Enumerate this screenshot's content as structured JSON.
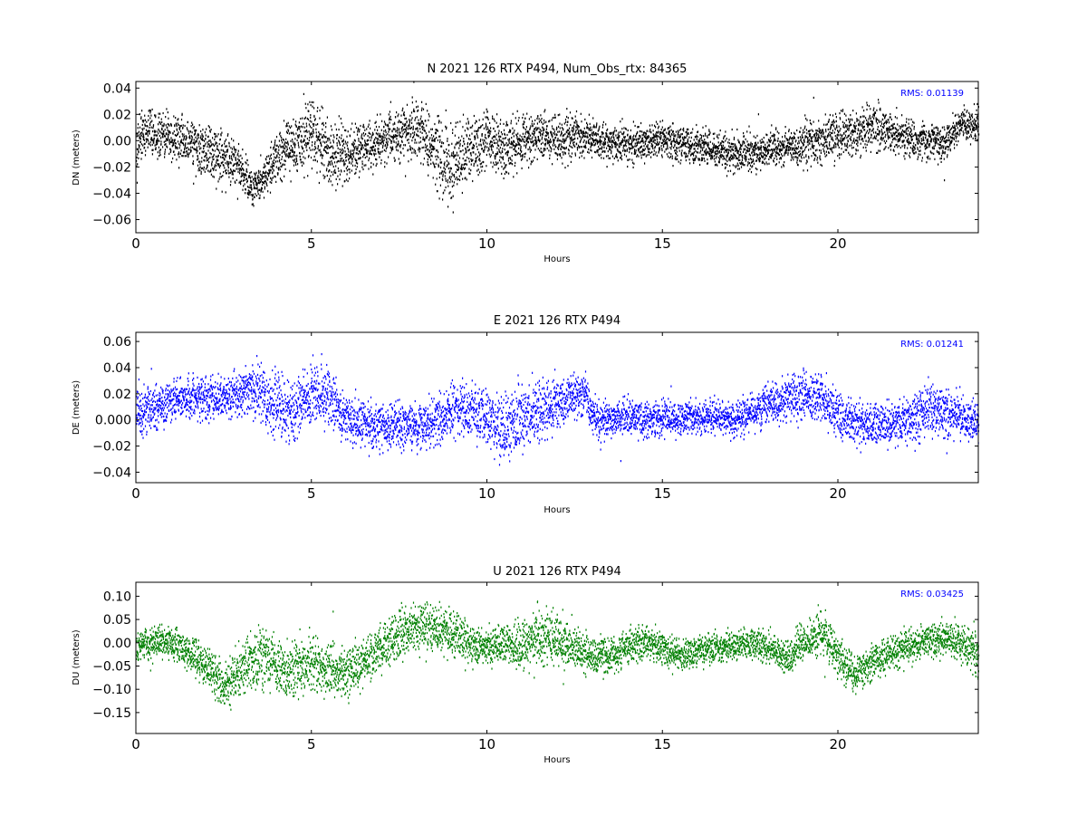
{
  "chart_data": [
    {
      "type": "scatter",
      "title": "N 2021 126 RTX  P494, Num_Obs_rtx: 84365",
      "xlabel": "Hours",
      "ylabel": "DN (meters)",
      "xlim": [
        0,
        24
      ],
      "ylim": [
        -0.07,
        0.045
      ],
      "xticks": [
        0,
        5,
        10,
        15,
        20
      ],
      "xtick_labels": [
        "0",
        "5",
        "10",
        "15",
        "20"
      ],
      "yticks": [
        -0.06,
        -0.04,
        -0.02,
        0.0,
        0.02,
        0.04
      ],
      "ytick_labels": [
        "−0.06",
        "−0.04",
        "−0.02",
        "0.00",
        "0.02",
        "0.04"
      ],
      "annotation": "RMS:  0.01139",
      "annotation_color": "#0000ff",
      "color": "#000000",
      "grid": false,
      "series": [
        {
          "x": [
            0,
            0.5,
            1,
            1.5,
            2,
            2.5,
            3,
            3.3,
            3.6,
            4,
            4.5,
            5,
            5.5,
            6,
            6.5,
            7,
            7.5,
            8,
            8.5,
            9,
            9.5,
            10,
            10.5,
            11,
            11.5,
            12,
            12.5,
            13,
            13.5,
            14,
            14.5,
            15,
            15.5,
            16,
            16.5,
            17,
            17.5,
            18,
            18.5,
            19,
            19.5,
            20,
            20.5,
            21,
            21.5,
            22,
            22.5,
            23,
            23.5,
            24
          ],
          "y": [
            0.0,
            0.005,
            0.002,
            -0.002,
            -0.008,
            -0.012,
            -0.022,
            -0.035,
            -0.03,
            -0.012,
            -0.002,
            0.005,
            -0.01,
            -0.012,
            -0.006,
            0.0,
            0.005,
            0.012,
            -0.01,
            -0.02,
            -0.005,
            0.0,
            -0.008,
            0.002,
            0.003,
            0.0,
            0.003,
            0.002,
            -0.002,
            -0.003,
            -0.002,
            0.002,
            -0.002,
            -0.004,
            -0.008,
            -0.01,
            -0.008,
            -0.006,
            -0.004,
            -0.002,
            0.0,
            0.004,
            0.006,
            0.01,
            0.006,
            0.002,
            0.0,
            -0.002,
            0.012,
            0.012
          ],
          "spread": [
            0.012,
            0.012,
            0.012,
            0.013,
            0.014,
            0.014,
            0.012,
            0.01,
            0.01,
            0.013,
            0.015,
            0.017,
            0.017,
            0.015,
            0.013,
            0.012,
            0.013,
            0.016,
            0.02,
            0.022,
            0.018,
            0.015,
            0.014,
            0.013,
            0.012,
            0.012,
            0.012,
            0.011,
            0.01,
            0.01,
            0.009,
            0.009,
            0.009,
            0.009,
            0.01,
            0.011,
            0.011,
            0.01,
            0.01,
            0.011,
            0.012,
            0.012,
            0.012,
            0.012,
            0.011,
            0.01,
            0.009,
            0.009,
            0.009,
            0.01
          ]
        }
      ]
    },
    {
      "type": "scatter",
      "title": "E 2021 126 RTX  P494",
      "xlabel": "Hours",
      "ylabel": "DE (meters)",
      "xlim": [
        0,
        24
      ],
      "ylim": [
        -0.048,
        0.067
      ],
      "xticks": [
        0,
        5,
        10,
        15,
        20
      ],
      "xtick_labels": [
        "0",
        "5",
        "10",
        "15",
        "20"
      ],
      "yticks": [
        -0.04,
        -0.02,
        0.0,
        0.02,
        0.04,
        0.06
      ],
      "ytick_labels": [
        "−0.04",
        "−0.02",
        "0.000",
        "0.02",
        "0.04",
        "0.06"
      ],
      "annotation": "RMS:  0.01241",
      "annotation_color": "#0000ff",
      "color": "#0000ff",
      "grid": false,
      "series": [
        {
          "x": [
            0,
            0.5,
            1,
            1.5,
            2,
            2.5,
            3,
            3.5,
            4,
            4.5,
            5,
            5.5,
            6,
            6.5,
            7,
            7.5,
            8,
            8.5,
            9,
            9.5,
            10,
            10.5,
            11,
            11.5,
            12,
            12.5,
            12.8,
            13,
            13.5,
            14,
            14.5,
            15,
            15.5,
            16,
            16.5,
            17,
            17.5,
            18,
            18.5,
            19,
            19.5,
            20,
            20.5,
            21,
            21.5,
            22,
            22.5,
            23,
            23.5,
            24
          ],
          "y": [
            0.005,
            0.01,
            0.015,
            0.018,
            0.015,
            0.018,
            0.02,
            0.02,
            0.012,
            0.005,
            0.022,
            0.018,
            0.002,
            -0.005,
            -0.006,
            -0.005,
            -0.005,
            0.0,
            0.008,
            0.008,
            0.002,
            -0.006,
            0.005,
            0.008,
            0.012,
            0.018,
            0.02,
            0.002,
            0.0,
            0.002,
            0.0,
            0.0,
            0.002,
            0.002,
            0.003,
            0.0,
            0.005,
            0.01,
            0.015,
            0.02,
            0.018,
            0.002,
            -0.002,
            -0.002,
            -0.003,
            0.0,
            0.008,
            0.005,
            0.002,
            -0.002
          ],
          "spread": [
            0.013,
            0.012,
            0.011,
            0.011,
            0.011,
            0.011,
            0.012,
            0.015,
            0.016,
            0.016,
            0.016,
            0.015,
            0.013,
            0.012,
            0.012,
            0.012,
            0.012,
            0.013,
            0.013,
            0.013,
            0.015,
            0.018,
            0.018,
            0.015,
            0.013,
            0.012,
            0.011,
            0.01,
            0.01,
            0.01,
            0.01,
            0.009,
            0.009,
            0.009,
            0.009,
            0.009,
            0.01,
            0.011,
            0.012,
            0.013,
            0.013,
            0.012,
            0.011,
            0.011,
            0.011,
            0.012,
            0.013,
            0.012,
            0.012,
            0.012
          ]
        }
      ]
    },
    {
      "type": "scatter",
      "title": "U 2021 126 RTX  P494",
      "xlabel": "Hours",
      "ylabel": "DU (meters)",
      "xlim": [
        0,
        24
      ],
      "ylim": [
        -0.195,
        0.13
      ],
      "xticks": [
        0,
        5,
        10,
        15,
        20
      ],
      "xtick_labels": [
        "0",
        "5",
        "10",
        "15",
        "20"
      ],
      "yticks": [
        -0.15,
        -0.1,
        -0.05,
        0.0,
        0.05,
        0.1
      ],
      "ytick_labels": [
        "−0.15",
        "−0.10",
        "−0.05",
        "0.00",
        "0.05",
        "0.10"
      ],
      "annotation": "RMS:  0.03425",
      "annotation_color": "#0000ff",
      "color": "#008000",
      "grid": false,
      "series": [
        {
          "x": [
            0,
            0.5,
            1,
            1.5,
            2,
            2.5,
            3,
            3.5,
            4,
            4.5,
            5,
            5.5,
            6,
            6.5,
            7,
            7.5,
            8,
            8.5,
            9,
            9.5,
            10,
            10.5,
            11,
            11.5,
            12,
            12.5,
            13,
            13.5,
            14,
            14.5,
            15,
            15.5,
            16,
            16.5,
            17,
            17.5,
            18,
            18.5,
            19,
            19.5,
            20,
            20.5,
            21,
            21.5,
            22,
            22.5,
            23,
            23.5,
            24
          ],
          "y": [
            -0.01,
            0.0,
            0.0,
            -0.02,
            -0.05,
            -0.09,
            -0.06,
            -0.03,
            -0.05,
            -0.06,
            -0.04,
            -0.06,
            -0.06,
            -0.04,
            -0.01,
            0.02,
            0.03,
            0.03,
            0.02,
            -0.01,
            -0.01,
            0.0,
            -0.01,
            0.02,
            0.0,
            -0.01,
            -0.03,
            -0.03,
            -0.01,
            0.0,
            -0.01,
            -0.03,
            -0.02,
            -0.01,
            -0.01,
            0.0,
            -0.01,
            -0.03,
            0.0,
            0.03,
            -0.03,
            -0.07,
            -0.04,
            -0.02,
            -0.01,
            0.0,
            0.01,
            0.0,
            -0.03
          ],
          "spread": [
            0.025,
            0.025,
            0.022,
            0.025,
            0.03,
            0.035,
            0.04,
            0.045,
            0.045,
            0.045,
            0.04,
            0.04,
            0.04,
            0.035,
            0.035,
            0.04,
            0.035,
            0.035,
            0.03,
            0.03,
            0.025,
            0.025,
            0.035,
            0.04,
            0.035,
            0.03,
            0.025,
            0.025,
            0.025,
            0.025,
            0.025,
            0.022,
            0.022,
            0.022,
            0.022,
            0.022,
            0.022,
            0.022,
            0.03,
            0.035,
            0.03,
            0.028,
            0.025,
            0.025,
            0.025,
            0.025,
            0.025,
            0.03,
            0.03
          ]
        }
      ]
    }
  ]
}
